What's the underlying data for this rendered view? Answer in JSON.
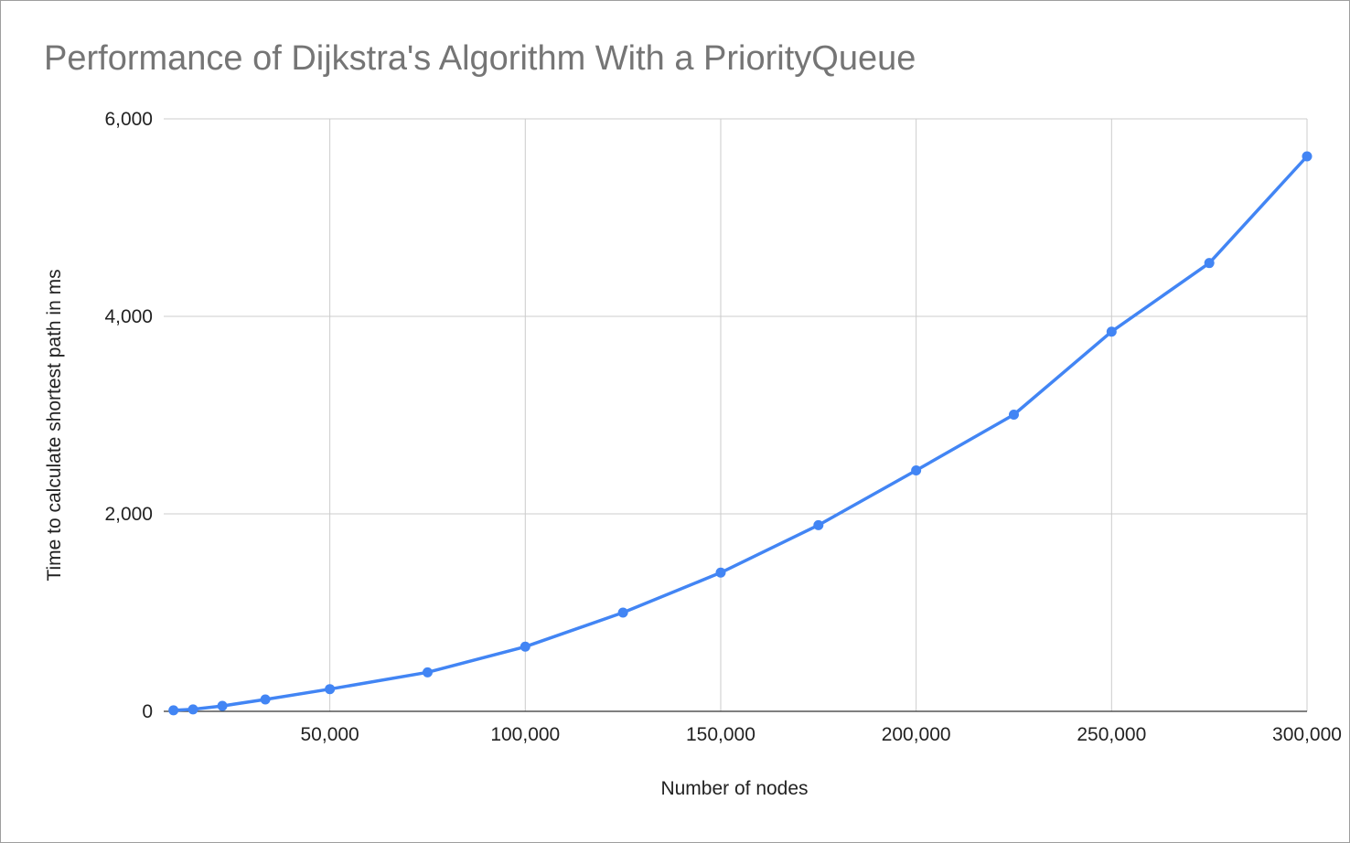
{
  "chart_data": {
    "type": "line",
    "title": "Performance of Dijkstra's Algorithm With a PriorityQueue",
    "xlabel": "Number of nodes",
    "ylabel": "Time to calculate shortest path in ms",
    "xlim": [
      7500,
      300000
    ],
    "ylim": [
      0,
      6000
    ],
    "x_ticks": [
      50000,
      100000,
      150000,
      200000,
      250000,
      300000
    ],
    "x_tick_labels": [
      "50,000",
      "100,000",
      "150,000",
      "200,000",
      "250,000",
      "300,000"
    ],
    "y_ticks": [
      0,
      2000,
      4000,
      6000
    ],
    "y_tick_labels": [
      "0",
      "2,000",
      "4,000",
      "6,000"
    ],
    "grid": true,
    "legend": "none",
    "series": [
      {
        "color": "#4285f4",
        "x": [
          10000,
          15000,
          22500,
          33500,
          50000,
          75000,
          100000,
          125000,
          150000,
          175000,
          200000,
          225000,
          250000,
          275000,
          300000
        ],
        "y": [
          10,
          20,
          55,
          120,
          225,
          395,
          655,
          1000,
          1405,
          1885,
          2440,
          3005,
          3845,
          4540,
          5620
        ]
      }
    ]
  }
}
